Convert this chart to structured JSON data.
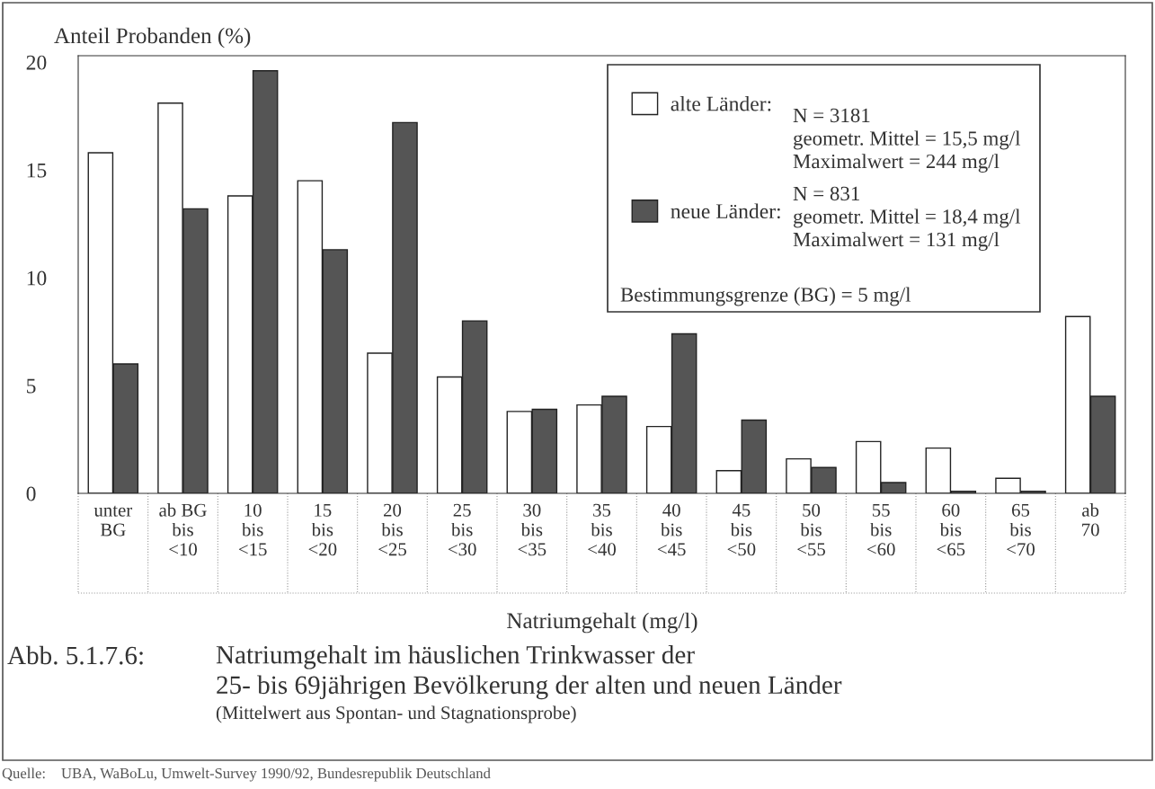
{
  "chart_data": {
    "type": "bar",
    "title": "Natriumgehalt im häuslichen Trinkwasser der\n25- bis 69jährigen Bevölkerung der alten und neuen Länder",
    "subtitle": "(Mittelwert aus Spontan- und Stagnationsprobe)",
    "xlabel": "Natriumgehalt (mg/l)",
    "ylabel": "Anteil Probanden (%)",
    "categories": [
      "unter\nBG",
      "ab BG\nbis\n<10",
      "10\nbis\n<15",
      "15\nbis\n<20",
      "20\nbis\n<25",
      "25\nbis\n<30",
      "30\nbis\n<35",
      "35\nbis\n<40",
      "40\nbis\n<45",
      "45\nbis\n<50",
      "50\nbis\n<55",
      "55\nbis\n<60",
      "60\nbis\n<65",
      "65\nbis\n<70",
      "ab\n70"
    ],
    "series": [
      {
        "name": "alte Länder:",
        "color": "#ffffff",
        "values": [
          15.8,
          18.1,
          13.8,
          14.5,
          6.5,
          5.4,
          3.8,
          4.1,
          3.1,
          1.05,
          1.6,
          2.4,
          2.1,
          0.7,
          8.2
        ]
      },
      {
        "name": "neue Länder:",
        "color": "#555555",
        "values": [
          6.0,
          13.2,
          19.6,
          11.3,
          17.2,
          8.0,
          3.9,
          4.5,
          7.4,
          3.4,
          1.2,
          0.5,
          0.1,
          0.1,
          4.5
        ]
      }
    ],
    "ylim": [
      0,
      20.3
    ],
    "yticks": [
      0,
      5,
      10,
      15,
      20
    ],
    "grid": false,
    "legend": "top right",
    "annotations": [
      "N = 3181\ngeometr. Mittel = 15,5 mg/l\nMaximalwert = 244 mg/l",
      "N = 831\ngeometr. Mittel = 18,4 mg/l\nMaximalwert = 131 mg/l",
      "Bestimmungsgrenze (BG) = 5 mg/l",
      "Abb. 5.1.7.6:",
      "Quelle:",
      "UBA, WaBoLu, Umwelt-Survey 1990/92, Bundesrepublik Deutschland"
    ]
  }
}
